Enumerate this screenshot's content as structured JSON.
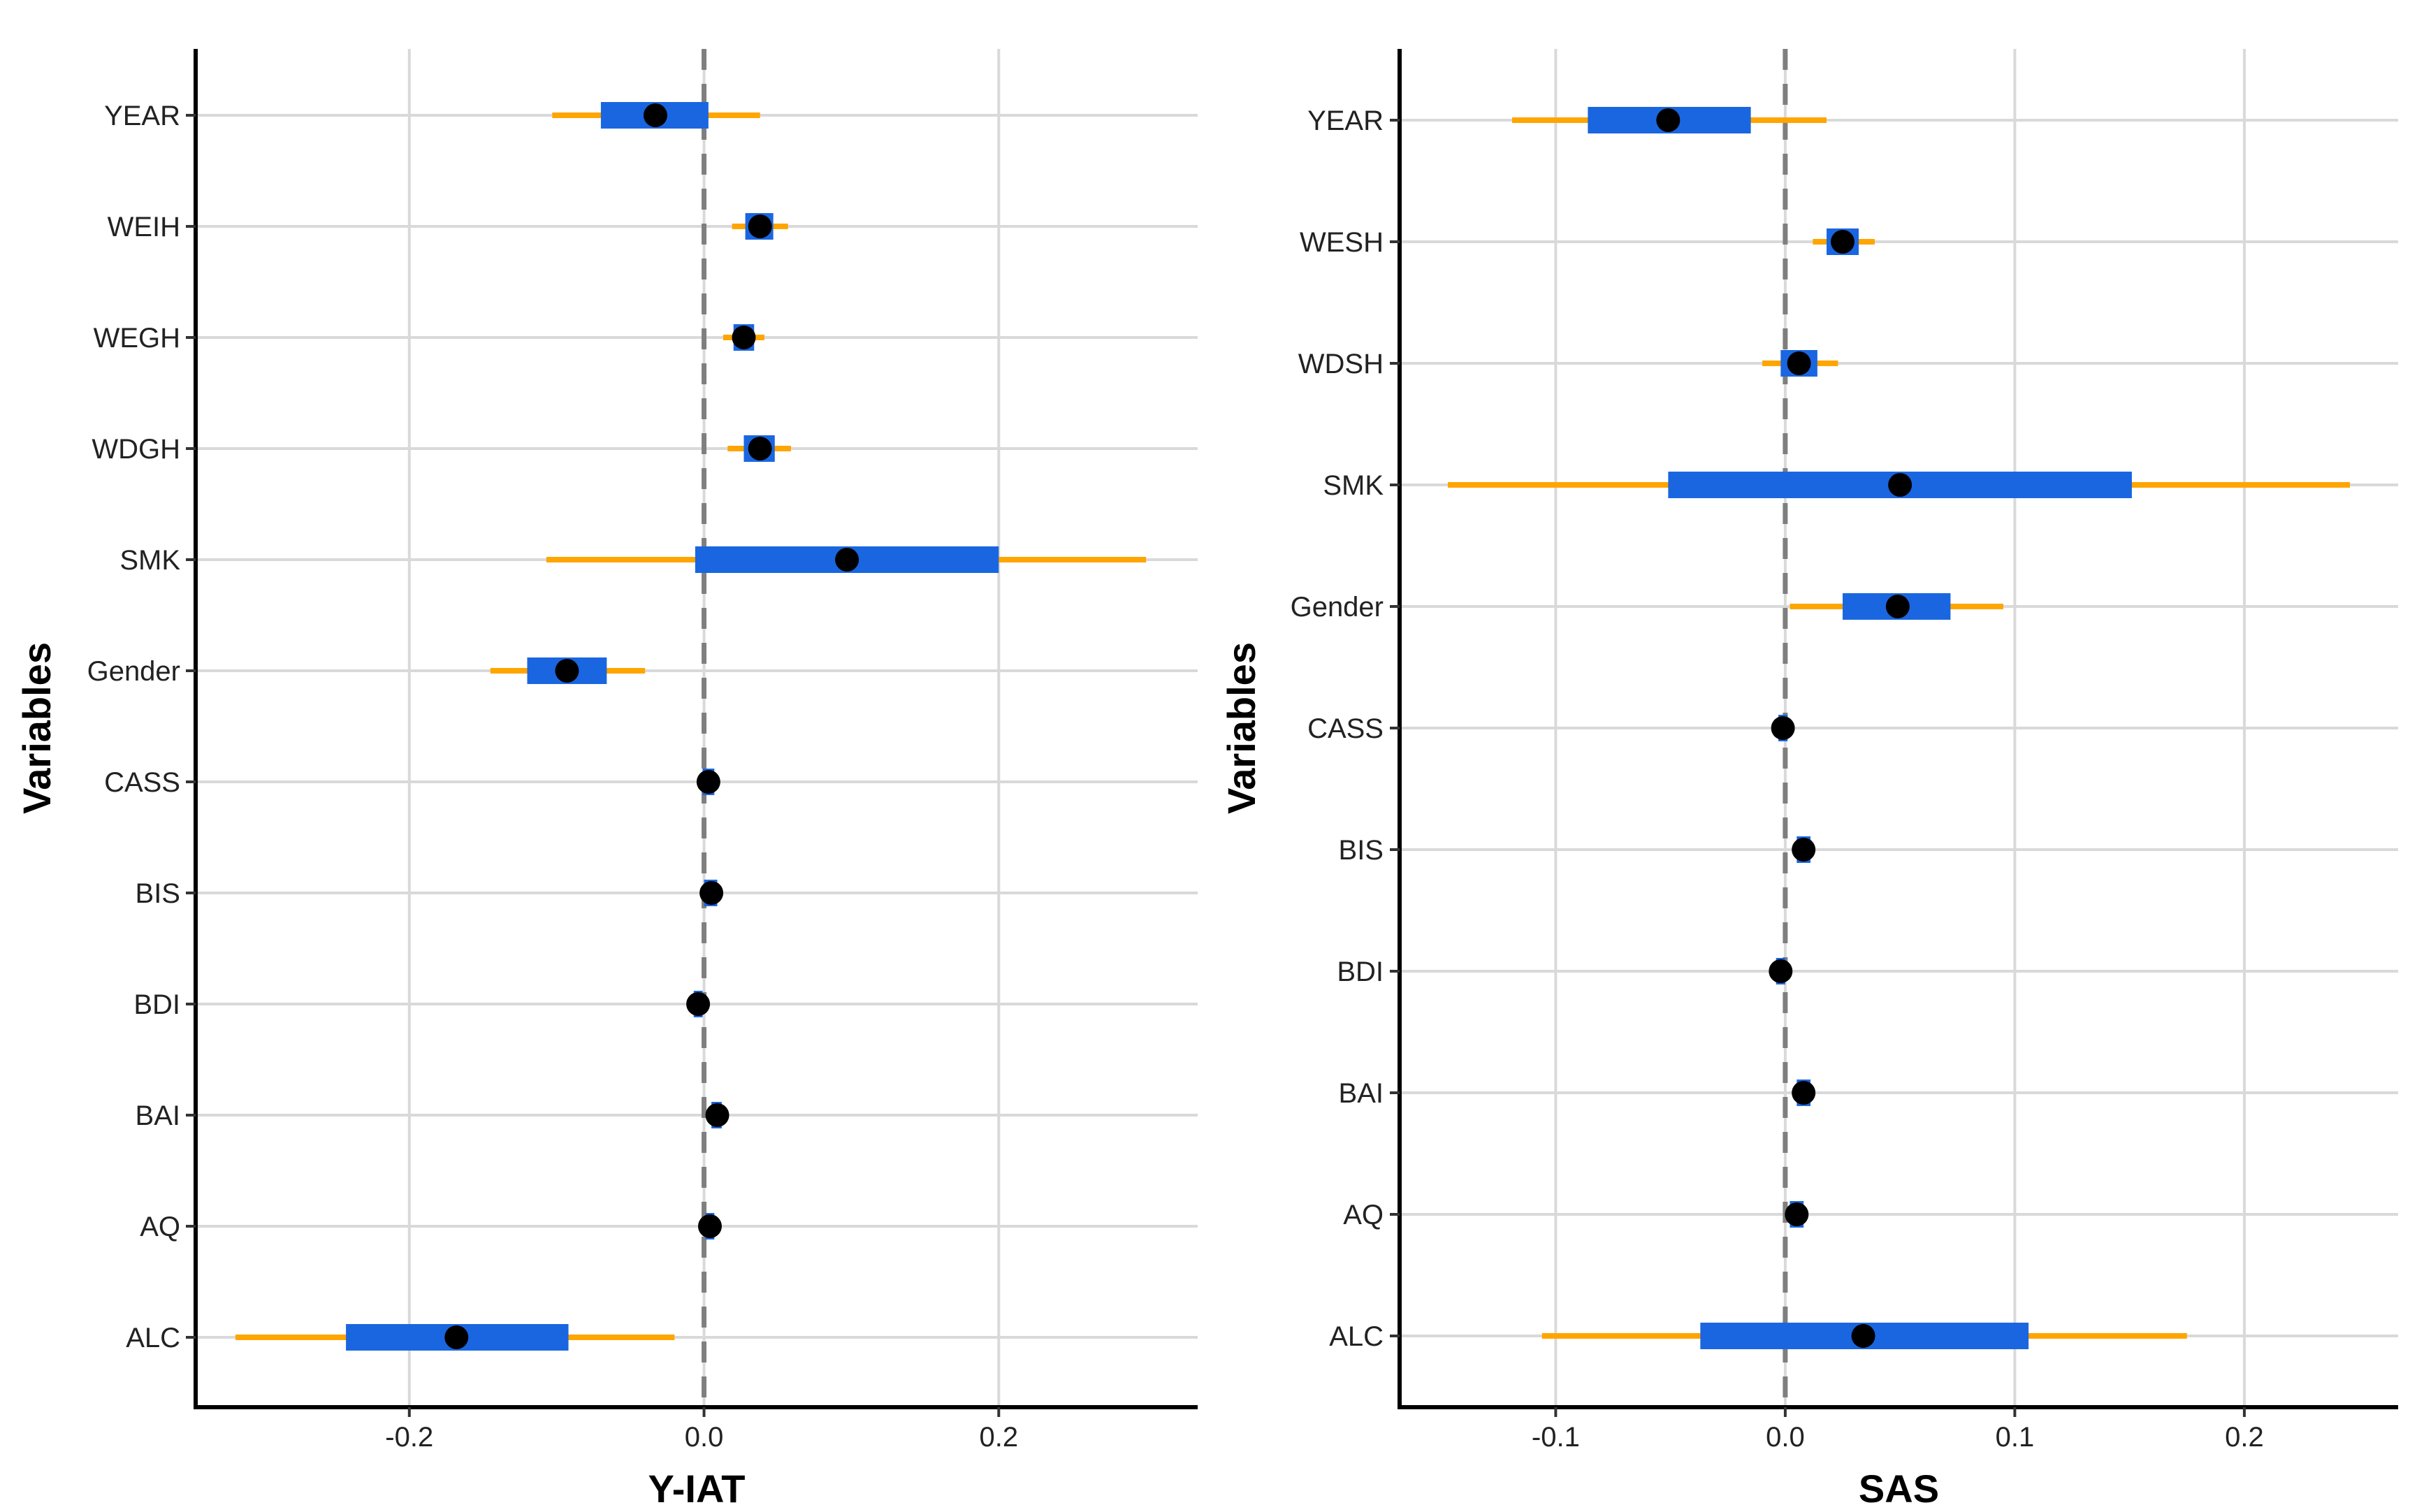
{
  "colors": {
    "background": "#ffffff",
    "grid": "#d9d9d9",
    "axis": "#000000",
    "zero_line": "#7f7f7f",
    "outer_interval": "#ffa500",
    "inner_interval": "#1a66e0",
    "point": "#000000"
  },
  "chart_data": [
    {
      "type": "forest",
      "xlabel": "Y-IAT",
      "ylabel": "Variables",
      "xlim": [
        -0.345,
        0.335
      ],
      "xticks": [
        -0.2,
        0.0,
        0.2
      ],
      "xtick_labels": [
        "-0.2",
        "0.0",
        "0.2"
      ],
      "reference_line": 0,
      "variables": [
        "YEAR",
        "WEIH",
        "WEGH",
        "WDGH",
        "SMK",
        "Gender",
        "CASS",
        "BIS",
        "BDI",
        "BAI",
        "AQ",
        "ALC"
      ],
      "estimates": [
        -0.033,
        0.038,
        0.027,
        0.038,
        0.097,
        -0.093,
        0.003,
        0.005,
        -0.004,
        0.009,
        0.004,
        -0.168
      ],
      "inner_interval": [
        [
          -0.07,
          0.003
        ],
        [
          0.028,
          0.047
        ],
        [
          0.02,
          0.034
        ],
        [
          0.027,
          0.048
        ],
        [
          -0.006,
          0.2
        ],
        [
          -0.12,
          -0.066
        ],
        [
          -0.001,
          0.007
        ],
        [
          0.0,
          0.009
        ],
        [
          -0.007,
          -0.001
        ],
        [
          0.005,
          0.012
        ],
        [
          0.001,
          0.007
        ],
        [
          -0.243,
          -0.092
        ]
      ],
      "outer_interval": [
        [
          -0.103,
          0.038
        ],
        [
          0.019,
          0.057
        ],
        [
          0.013,
          0.041
        ],
        [
          0.016,
          0.059
        ],
        [
          -0.107,
          0.3
        ],
        [
          -0.145,
          -0.04
        ],
        [
          -0.002,
          0.008
        ],
        [
          -0.001,
          0.011
        ],
        [
          -0.009,
          0.001
        ],
        [
          0.003,
          0.015
        ],
        [
          0.0,
          0.008
        ],
        [
          -0.318,
          -0.02
        ]
      ]
    },
    {
      "type": "forest",
      "xlabel": "SAS",
      "ylabel": "Variables",
      "xlim": [
        -0.168,
        0.267
      ],
      "xticks": [
        -0.1,
        0.0,
        0.1,
        0.2
      ],
      "xtick_labels": [
        "-0.1",
        "0.0",
        "0.1",
        "0.2"
      ],
      "reference_line": 0,
      "variables": [
        "YEAR",
        "WESH",
        "WDSH",
        "SMK",
        "Gender",
        "CASS",
        "BIS",
        "BDI",
        "BAI",
        "AQ",
        "ALC"
      ],
      "estimates": [
        -0.051,
        0.025,
        0.006,
        0.05,
        0.049,
        -0.001,
        0.008,
        -0.002,
        0.008,
        0.005,
        0.034
      ],
      "inner_interval": [
        [
          -0.086,
          -0.015
        ],
        [
          0.018,
          0.032
        ],
        [
          -0.002,
          0.014
        ],
        [
          -0.051,
          0.151
        ],
        [
          0.025,
          0.072
        ],
        [
          -0.003,
          0.001
        ],
        [
          0.005,
          0.011
        ],
        [
          -0.004,
          0.0
        ],
        [
          0.005,
          0.011
        ],
        [
          0.002,
          0.008
        ],
        [
          -0.037,
          0.106
        ]
      ],
      "outer_interval": [
        [
          -0.119,
          0.018
        ],
        [
          0.012,
          0.039
        ],
        [
          -0.01,
          0.023
        ],
        [
          -0.147,
          0.246
        ],
        [
          0.002,
          0.095
        ],
        [
          -0.004,
          0.002
        ],
        [
          0.004,
          0.012
        ],
        [
          -0.005,
          0.001
        ],
        [
          0.004,
          0.012
        ],
        [
          0.001,
          0.009
        ],
        [
          -0.106,
          0.175
        ]
      ]
    }
  ]
}
